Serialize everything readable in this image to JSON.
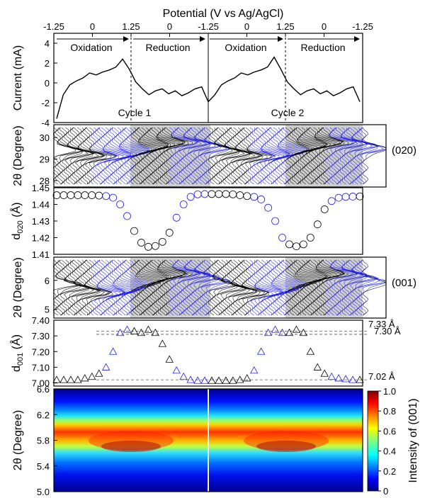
{
  "colors": {
    "ox": "#000000",
    "red": "#1f1fe0",
    "shade": "#9f9f9f"
  },
  "top_axis": {
    "title": "Potential (V vs Ag/AgCl)",
    "ticks": [
      "-1.25",
      "0",
      "1.25",
      "0",
      "-1.25",
      "0",
      "1.25",
      "0",
      "-1.25"
    ]
  },
  "chart_data": [
    {
      "type": "line",
      "ylabel": "Current (mA)",
      "yticks": [
        "-4",
        "-2",
        "0",
        "2",
        "4"
      ],
      "ylim": [
        -4,
        5
      ],
      "annotations": [
        "Oxidation",
        "Reduction",
        "Oxidation",
        "Reduction",
        "Cycle 1",
        "Cycle 2"
      ],
      "series": [
        {
          "values": [
            -3.6,
            -1.2,
            -0.2,
            0.2,
            0.5,
            1.0,
            0.8,
            1.1,
            1.3,
            1.6,
            2.4,
            1.4,
            0.1,
            -0.6,
            -1.2,
            -0.8,
            -0.6,
            -1.1,
            -0.8,
            -1.3,
            -1.0,
            -0.6,
            -0.4,
            -1.9,
            -1.2,
            -0.2,
            0.2,
            0.5,
            1.0,
            0.8,
            1.1,
            1.3,
            1.6,
            2.6,
            1.4,
            0.1,
            -0.6,
            -1.2,
            -0.8,
            -0.6,
            -1.1,
            -0.8,
            -1.3,
            -1.0,
            -0.6,
            -0.4,
            -1.9
          ]
        }
      ]
    },
    {
      "type": "line",
      "ylabel": "2θ (Degree)",
      "yticks": [
        "28",
        "29",
        "30"
      ],
      "ylim": [
        27.7,
        30.6
      ],
      "annotations": [
        "(020)"
      ]
    },
    {
      "type": "scatter",
      "ylabel": "d",
      "ylabel_sub": "020",
      "ylabel_unit": "(Å)",
      "yticks": [
        "1.41",
        "1.42",
        "1.43",
        "1.44",
        "1.45"
      ],
      "ylim": [
        1.41,
        1.45
      ],
      "series": [
        {
          "values": [
            1.4455,
            1.4455,
            1.4455,
            1.4455,
            1.4455,
            1.4455,
            1.4453,
            1.445,
            1.444,
            1.44,
            1.433,
            1.424,
            1.417,
            1.4145,
            1.415,
            1.4175,
            1.423,
            1.432,
            1.44,
            1.4445,
            1.446,
            1.4462,
            1.4462,
            1.4462,
            1.4462,
            1.446,
            1.4455,
            1.445,
            1.4445,
            1.443,
            1.438,
            1.43,
            1.42,
            1.416,
            1.4148,
            1.416,
            1.42,
            1.428,
            1.437,
            1.442,
            1.444,
            1.4445,
            1.4447,
            1.4448
          ]
        }
      ]
    },
    {
      "type": "line",
      "ylabel": "2θ (Degree)",
      "yticks": [
        "5",
        "6"
      ],
      "ylim": [
        4.7,
        6.8
      ],
      "annotations": [
        "(001)"
      ]
    },
    {
      "type": "scatter",
      "ylabel": "d",
      "ylabel_sub": "001",
      "ylabel_unit": "(Å)",
      "yticks": [
        "7.00",
        "7.10",
        "7.20",
        "7.30",
        "7.40"
      ],
      "ylim": [
        6.98,
        7.4
      ],
      "reference_lines": [
        "7.33 Å",
        "7.30 Å",
        "7.02 Å"
      ],
      "series": [
        {
          "values": [
            7.02,
            7.02,
            7.02,
            7.02,
            7.03,
            7.04,
            7.06,
            7.1,
            7.2,
            7.32,
            7.34,
            7.33,
            7.32,
            7.34,
            7.32,
            7.25,
            7.15,
            7.08,
            7.04,
            7.02,
            7.015,
            7.015,
            7.015,
            7.015,
            7.015,
            7.015,
            7.02,
            7.03,
            7.08,
            7.2,
            7.32,
            7.34,
            7.32,
            7.32,
            7.34,
            7.32,
            7.2,
            7.1,
            7.06,
            7.04,
            7.03,
            7.025,
            7.02,
            7.02
          ]
        }
      ]
    },
    {
      "type": "heatmap",
      "ylabel": "2θ (Degree)",
      "yticks": [
        "5.0",
        "5.4",
        "5.8",
        "6.2",
        "6.6"
      ],
      "ylim": [
        5.0,
        6.6
      ],
      "colorbar": {
        "label": "Intensity of (001)",
        "ticks": [
          "0",
          "0.2",
          "0.4",
          "0.6",
          "0.8",
          "1.0"
        ]
      }
    }
  ]
}
